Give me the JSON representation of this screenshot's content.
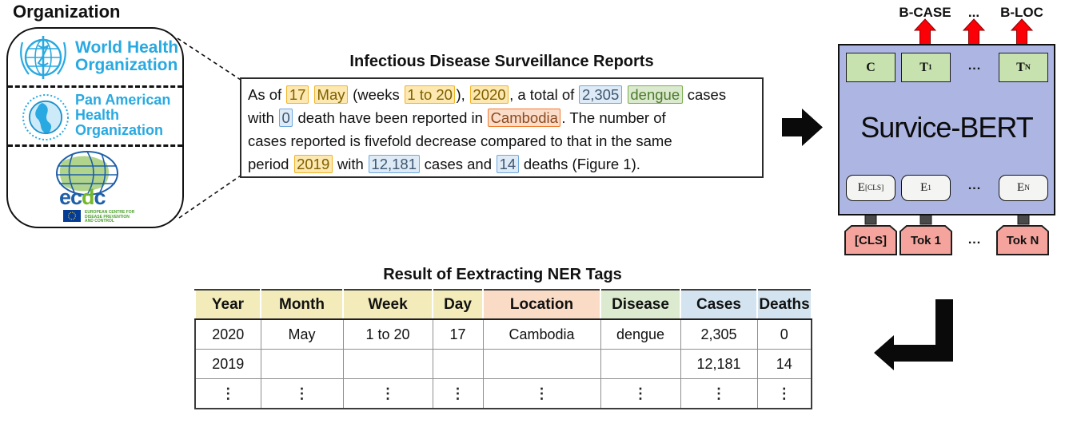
{
  "colors": {
    "who_blue": "#29a9e1",
    "ecdc_blue": "#1f5fa8",
    "ecdc_green": "#76b82a",
    "bert_fill": "#adb6e2",
    "unit_green": "#c7e1af",
    "token_pink": "#f5a49d",
    "arrow_red": "#fb0007",
    "arrow_gray": "#4a4a4a",
    "tag_date_bg": "#fce8b0",
    "tag_date_border": "#f0b429",
    "tag_count_bg": "#deeaf6",
    "tag_count_border": "#6fa8dc",
    "tag_disease_bg": "#dbe9ce",
    "tag_disease_border": "#76ae4c",
    "tag_location_bg": "#fadcc8",
    "tag_location_border": "#ee7c31",
    "hdr_date": "#f3ecba",
    "hdr_location": "#fadcc6",
    "hdr_disease": "#dcebd0",
    "hdr_count": "#d3e4f0"
  },
  "organization": {
    "title": "Organization",
    "who": {
      "lines": [
        "World Health",
        "Organization"
      ]
    },
    "paho": {
      "lines": [
        "Pan American",
        "Health",
        "Organization"
      ]
    },
    "ecdc": {
      "word_parts": {
        "pre": "ec",
        "d": "d",
        "post": "c"
      },
      "caption_lines": [
        "EUROPEAN CENTRE FOR",
        "DISEASE PREVENTION",
        "AND CONTROL"
      ]
    }
  },
  "report": {
    "title": "Infectious Disease Surveillance Reports",
    "segments": [
      {
        "t": "As of ",
        "k": "plain"
      },
      {
        "t": "17",
        "k": "date"
      },
      {
        "t": " ",
        "k": "plain"
      },
      {
        "t": "May",
        "k": "date"
      },
      {
        "t": " (weeks ",
        "k": "plain"
      },
      {
        "t": "1 to 20",
        "k": "date"
      },
      {
        "t": "), ",
        "k": "plain"
      },
      {
        "t": "2020",
        "k": "date"
      },
      {
        "t": ", a total of ",
        "k": "plain"
      },
      {
        "t": "2,305",
        "k": "count"
      },
      {
        "t": " ",
        "k": "plain"
      },
      {
        "t": "dengue",
        "k": "disease"
      },
      {
        "t": " cases",
        "k": "plain"
      },
      {
        "k": "br"
      },
      {
        "t": "with ",
        "k": "plain"
      },
      {
        "t": "0",
        "k": "count"
      },
      {
        "t": " death have been reported in ",
        "k": "plain"
      },
      {
        "t": "Cambodia",
        "k": "location"
      },
      {
        "t": ". The number of",
        "k": "plain"
      },
      {
        "k": "br"
      },
      {
        "t": "cases reported is fivefold decrease compared to that in the same",
        "k": "plain"
      },
      {
        "k": "br"
      },
      {
        "t": "period ",
        "k": "plain"
      },
      {
        "t": "2019",
        "k": "date"
      },
      {
        "t": " with ",
        "k": "plain"
      },
      {
        "t": "12,181",
        "k": "count"
      },
      {
        "t": " cases and ",
        "k": "plain"
      },
      {
        "t": "14",
        "k": "count"
      },
      {
        "t": " deaths (Figure 1).",
        "k": "plain"
      }
    ]
  },
  "bert": {
    "model_name": "Survice-BERT",
    "output_labels": [
      {
        "label": "B-CASE"
      },
      {
        "label": "..."
      },
      {
        "label": "B-LOC"
      }
    ],
    "units": [
      {
        "main": "C",
        "sub": ""
      },
      {
        "main": "T",
        "sub": "1"
      },
      {
        "dots": "..."
      },
      {
        "main": "T",
        "sub": "N"
      }
    ],
    "embeddings": [
      {
        "main": "E",
        "sub": "[CLS]"
      },
      {
        "main": "E",
        "sub": "1"
      },
      {
        "dots": "..."
      },
      {
        "main": "E",
        "sub": "N"
      }
    ],
    "tokens": [
      {
        "label": "[CLS]"
      },
      {
        "label": "Tok 1"
      },
      {
        "dots": "..."
      },
      {
        "label": "Tok N"
      }
    ]
  },
  "table": {
    "title": "Result of Eextracting NER Tags",
    "columns": [
      {
        "label": "Year",
        "group": "date"
      },
      {
        "label": "Month",
        "group": "date"
      },
      {
        "label": "Week",
        "group": "date"
      },
      {
        "label": "Day",
        "group": "date"
      },
      {
        "label": "Location",
        "group": "location"
      },
      {
        "label": "Disease",
        "group": "disease"
      },
      {
        "label": "Cases",
        "group": "count"
      },
      {
        "label": "Deaths",
        "group": "count"
      }
    ],
    "rows": [
      [
        "2020",
        "May",
        "1 to 20",
        "17",
        "Cambodia",
        "dengue",
        "2,305",
        "0"
      ],
      [
        "2019",
        "",
        "",
        "",
        "",
        "",
        "12,181",
        "14"
      ],
      [
        "⋮",
        "⋮",
        "⋮",
        "⋮",
        "⋮",
        "⋮",
        "⋮",
        "⋮"
      ]
    ]
  }
}
